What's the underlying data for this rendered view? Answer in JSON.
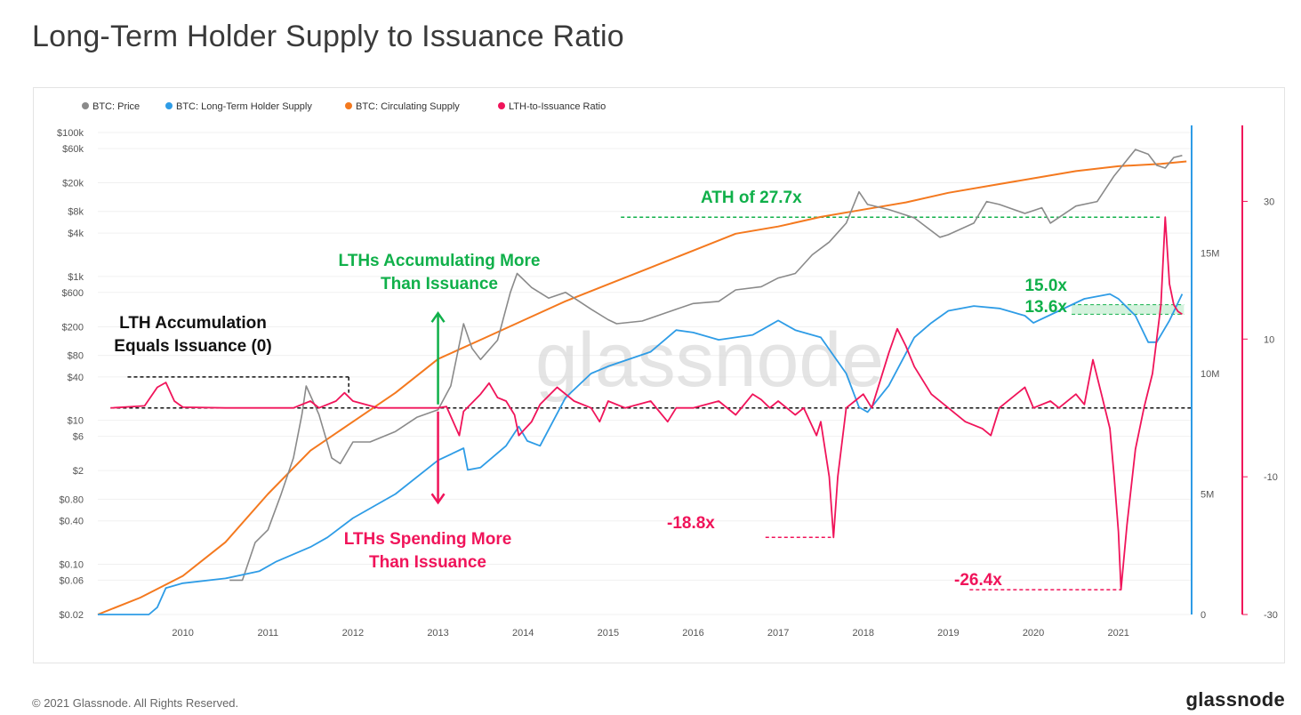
{
  "title": "Long-Term Holder Supply to Issuance Ratio",
  "footer": {
    "copyright": "© 2021 Glassnode. All Rights Reserved.",
    "brand": "glassnode"
  },
  "watermark": "glassnode",
  "colors": {
    "price": "#8a8a8a",
    "lth": "#2e9ce6",
    "circ": "#f4791f",
    "ratio": "#f0145a",
    "green": "#10b04a",
    "black": "#111111"
  },
  "chart_data": {
    "type": "line",
    "title": "Long-Term Holder Supply to Issuance Ratio",
    "x_range": [
      2009.0,
      2021.85
    ],
    "x_ticks": [
      "2010",
      "2011",
      "2012",
      "2013",
      "2014",
      "2015",
      "2016",
      "2017",
      "2018",
      "2019",
      "2020",
      "2021"
    ],
    "y_left": {
      "scale": "log",
      "range": [
        0.02,
        100000
      ],
      "ticks": [
        "$100k",
        "$60k",
        "$20k",
        "$8k",
        "$4k",
        "$1k",
        "$600",
        "$200",
        "$80",
        "$40",
        "$10",
        "$6",
        "$2",
        "$0.80",
        "$0.40",
        "$0.10",
        "$0.06",
        "$0.02"
      ]
    },
    "y_supply": {
      "range": [
        0,
        20000000
      ],
      "ticks": [
        "15M",
        "10M",
        "5M",
        "0"
      ]
    },
    "y_ratio": {
      "range": [
        -30,
        40
      ],
      "ticks": [
        "30",
        "10",
        "-10",
        "-30"
      ]
    },
    "legend": [
      "BTC: Price",
      "BTC: Long-Term Holder Supply",
      "BTC: Circulating Supply",
      "LTH-to-Issuance Ratio"
    ],
    "series": [
      {
        "name": "BTC: Price",
        "axis": "price",
        "points": [
          [
            2010.55,
            0.06
          ],
          [
            2010.7,
            0.06
          ],
          [
            2010.85,
            0.2
          ],
          [
            2011.0,
            0.3
          ],
          [
            2011.15,
            0.9
          ],
          [
            2011.3,
            3
          ],
          [
            2011.4,
            12
          ],
          [
            2011.45,
            30
          ],
          [
            2011.6,
            12
          ],
          [
            2011.75,
            3
          ],
          [
            2011.85,
            2.5
          ],
          [
            2012.0,
            5
          ],
          [
            2012.2,
            5
          ],
          [
            2012.5,
            7
          ],
          [
            2012.75,
            11
          ],
          [
            2013.0,
            14
          ],
          [
            2013.15,
            30
          ],
          [
            2013.3,
            220
          ],
          [
            2013.4,
            100
          ],
          [
            2013.5,
            70
          ],
          [
            2013.7,
            130
          ],
          [
            2013.85,
            600
          ],
          [
            2013.93,
            1100
          ],
          [
            2014.1,
            700
          ],
          [
            2014.3,
            500
          ],
          [
            2014.5,
            600
          ],
          [
            2014.8,
            350
          ],
          [
            2015.0,
            250
          ],
          [
            2015.1,
            220
          ],
          [
            2015.4,
            240
          ],
          [
            2015.8,
            350
          ],
          [
            2016.0,
            420
          ],
          [
            2016.3,
            450
          ],
          [
            2016.5,
            650
          ],
          [
            2016.8,
            720
          ],
          [
            2017.0,
            950
          ],
          [
            2017.2,
            1100
          ],
          [
            2017.4,
            2000
          ],
          [
            2017.6,
            3000
          ],
          [
            2017.8,
            5500
          ],
          [
            2017.95,
            15000
          ],
          [
            2018.05,
            10000
          ],
          [
            2018.3,
            8500
          ],
          [
            2018.6,
            6500
          ],
          [
            2018.9,
            3500
          ],
          [
            2019.0,
            3800
          ],
          [
            2019.3,
            5500
          ],
          [
            2019.45,
            11000
          ],
          [
            2019.6,
            10000
          ],
          [
            2019.9,
            7500
          ],
          [
            2020.1,
            9000
          ],
          [
            2020.2,
            5500
          ],
          [
            2020.5,
            9500
          ],
          [
            2020.75,
            11000
          ],
          [
            2020.95,
            25000
          ],
          [
            2021.05,
            35000
          ],
          [
            2021.2,
            58000
          ],
          [
            2021.35,
            50000
          ],
          [
            2021.45,
            35000
          ],
          [
            2021.55,
            32000
          ],
          [
            2021.65,
            45000
          ],
          [
            2021.75,
            48000
          ]
        ]
      },
      {
        "name": "BTC: Long-Term Holder Supply",
        "axis": "supply",
        "points": [
          [
            2009.0,
            0
          ],
          [
            2009.6,
            0
          ],
          [
            2009.7,
            300000
          ],
          [
            2009.8,
            1100000
          ],
          [
            2010.0,
            1300000
          ],
          [
            2010.5,
            1500000
          ],
          [
            2010.9,
            1800000
          ],
          [
            2011.1,
            2200000
          ],
          [
            2011.5,
            2800000
          ],
          [
            2011.7,
            3200000
          ],
          [
            2012.0,
            4000000
          ],
          [
            2012.5,
            5000000
          ],
          [
            2013.0,
            6400000
          ],
          [
            2013.3,
            6900000
          ],
          [
            2013.35,
            6000000
          ],
          [
            2013.5,
            6100000
          ],
          [
            2013.8,
            7000000
          ],
          [
            2013.95,
            7800000
          ],
          [
            2014.05,
            7200000
          ],
          [
            2014.2,
            7000000
          ],
          [
            2014.5,
            9000000
          ],
          [
            2014.8,
            10000000
          ],
          [
            2015.0,
            10300000
          ],
          [
            2015.5,
            10900000
          ],
          [
            2015.8,
            11800000
          ],
          [
            2016.0,
            11700000
          ],
          [
            2016.3,
            11400000
          ],
          [
            2016.7,
            11600000
          ],
          [
            2016.9,
            12000000
          ],
          [
            2017.0,
            12200000
          ],
          [
            2017.2,
            11800000
          ],
          [
            2017.5,
            11500000
          ],
          [
            2017.8,
            10000000
          ],
          [
            2017.95,
            8600000
          ],
          [
            2018.05,
            8400000
          ],
          [
            2018.3,
            9500000
          ],
          [
            2018.6,
            11500000
          ],
          [
            2018.8,
            12100000
          ],
          [
            2019.0,
            12600000
          ],
          [
            2019.3,
            12800000
          ],
          [
            2019.6,
            12700000
          ],
          [
            2019.9,
            12400000
          ],
          [
            2020.0,
            12100000
          ],
          [
            2020.3,
            12600000
          ],
          [
            2020.6,
            13100000
          ],
          [
            2020.9,
            13300000
          ],
          [
            2021.0,
            13100000
          ],
          [
            2021.2,
            12400000
          ],
          [
            2021.35,
            11300000
          ],
          [
            2021.45,
            11300000
          ],
          [
            2021.6,
            12200000
          ],
          [
            2021.75,
            13300000
          ]
        ]
      },
      {
        "name": "BTC: Circulating Supply",
        "axis": "supply",
        "points": [
          [
            2009.0,
            0
          ],
          [
            2009.5,
            700000
          ],
          [
            2010.0,
            1600000
          ],
          [
            2010.5,
            3000000
          ],
          [
            2011.0,
            5000000
          ],
          [
            2011.5,
            6800000
          ],
          [
            2012.0,
            8000000
          ],
          [
            2012.5,
            9200000
          ],
          [
            2013.0,
            10600000
          ],
          [
            2013.5,
            11400000
          ],
          [
            2014.0,
            12200000
          ],
          [
            2014.5,
            13000000
          ],
          [
            2015.0,
            13700000
          ],
          [
            2015.5,
            14400000
          ],
          [
            2016.0,
            15100000
          ],
          [
            2016.5,
            15800000
          ],
          [
            2017.0,
            16100000
          ],
          [
            2017.5,
            16500000
          ],
          [
            2018.0,
            16800000
          ],
          [
            2018.5,
            17100000
          ],
          [
            2019.0,
            17500000
          ],
          [
            2019.5,
            17800000
          ],
          [
            2020.0,
            18100000
          ],
          [
            2020.5,
            18400000
          ],
          [
            2021.0,
            18600000
          ],
          [
            2021.5,
            18700000
          ],
          [
            2021.8,
            18800000
          ]
        ]
      },
      {
        "name": "LTH-to-Issuance Ratio",
        "axis": "ratio",
        "points": [
          [
            2009.15,
            0
          ],
          [
            2009.55,
            0.3
          ],
          [
            2009.7,
            3
          ],
          [
            2009.8,
            3.7
          ],
          [
            2009.9,
            1
          ],
          [
            2010.0,
            0.1
          ],
          [
            2010.5,
            0
          ],
          [
            2011.0,
            0
          ],
          [
            2011.3,
            0
          ],
          [
            2011.5,
            1
          ],
          [
            2011.6,
            0
          ],
          [
            2011.8,
            1
          ],
          [
            2011.9,
            2.2
          ],
          [
            2012.0,
            1
          ],
          [
            2012.3,
            0
          ],
          [
            2012.6,
            0
          ],
          [
            2013.0,
            0
          ],
          [
            2013.1,
            0.2
          ],
          [
            2013.25,
            -4
          ],
          [
            2013.3,
            -0.5
          ],
          [
            2013.5,
            2
          ],
          [
            2013.6,
            3.6
          ],
          [
            2013.7,
            1.5
          ],
          [
            2013.8,
            1
          ],
          [
            2013.9,
            -1
          ],
          [
            2013.95,
            -4
          ],
          [
            2014.1,
            -2
          ],
          [
            2014.2,
            0.5
          ],
          [
            2014.4,
            3
          ],
          [
            2014.6,
            1
          ],
          [
            2014.8,
            0
          ],
          [
            2014.9,
            -2
          ],
          [
            2015.0,
            1
          ],
          [
            2015.2,
            0
          ],
          [
            2015.5,
            1
          ],
          [
            2015.7,
            -2
          ],
          [
            2015.8,
            0
          ],
          [
            2016.0,
            0
          ],
          [
            2016.3,
            1
          ],
          [
            2016.5,
            -1
          ],
          [
            2016.7,
            2
          ],
          [
            2016.8,
            1.2
          ],
          [
            2016.9,
            0
          ],
          [
            2017.0,
            1
          ],
          [
            2017.2,
            -1
          ],
          [
            2017.3,
            0
          ],
          [
            2017.45,
            -4
          ],
          [
            2017.5,
            -2
          ],
          [
            2017.6,
            -10
          ],
          [
            2017.65,
            -18.8
          ],
          [
            2017.7,
            -10
          ],
          [
            2017.8,
            0
          ],
          [
            2017.9,
            1
          ],
          [
            2018.0,
            2
          ],
          [
            2018.1,
            0
          ],
          [
            2018.25,
            6
          ],
          [
            2018.3,
            8
          ],
          [
            2018.4,
            11.5
          ],
          [
            2018.5,
            9
          ],
          [
            2018.6,
            6
          ],
          [
            2018.8,
            2
          ],
          [
            2019.0,
            0
          ],
          [
            2019.2,
            -2
          ],
          [
            2019.4,
            -3
          ],
          [
            2019.5,
            -4
          ],
          [
            2019.6,
            0
          ],
          [
            2019.8,
            2
          ],
          [
            2019.9,
            3
          ],
          [
            2020.0,
            0
          ],
          [
            2020.2,
            1
          ],
          [
            2020.3,
            0
          ],
          [
            2020.5,
            2
          ],
          [
            2020.6,
            0.5
          ],
          [
            2020.7,
            7
          ],
          [
            2020.8,
            2
          ],
          [
            2020.9,
            -3
          ],
          [
            2020.95,
            -10
          ],
          [
            2021.0,
            -18
          ],
          [
            2021.03,
            -26.4
          ],
          [
            2021.1,
            -17
          ],
          [
            2021.2,
            -6
          ],
          [
            2021.3,
            0
          ],
          [
            2021.4,
            5
          ],
          [
            2021.5,
            15
          ],
          [
            2021.55,
            27.7
          ],
          [
            2021.6,
            18
          ],
          [
            2021.65,
            15
          ],
          [
            2021.7,
            14
          ],
          [
            2021.75,
            13.6
          ]
        ]
      }
    ],
    "annotations": {
      "accumulating": [
        "LTHs Accumulating More",
        "Than Issuance"
      ],
      "spending": [
        "LTHs Spending More",
        "Than Issuance"
      ],
      "equals": [
        "LTH Accumulation",
        "Equals Issuance (0)"
      ],
      "ath": "ATH of 27.7x",
      "low1": "-18.8x",
      "low2": "-26.4x",
      "current_high": "15.0x",
      "current_low": "13.6x"
    }
  }
}
